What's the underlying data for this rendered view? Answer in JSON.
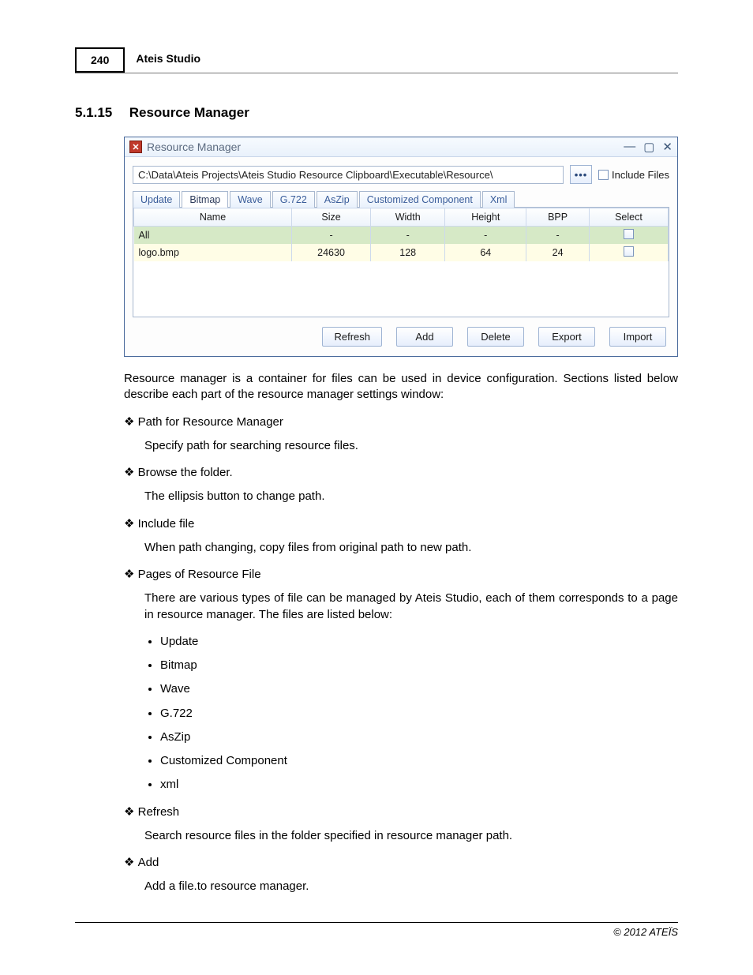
{
  "header": {
    "page_number": "240",
    "product": "Ateis Studio"
  },
  "section": {
    "number": "5.1.15",
    "title": "Resource Manager"
  },
  "window": {
    "title": "Resource Manager",
    "path": "C:\\Data\\Ateis Projects\\Ateis Studio Resource Clipboard\\Executable\\Resource\\",
    "browse_label": "•••",
    "include_files_label": "Include Files",
    "tabs": [
      "Update",
      "Bitmap",
      "Wave",
      "G.722",
      "AsZip",
      "Customized Component",
      "Xml"
    ],
    "active_tab_index": 1,
    "columns": [
      "Name",
      "Size",
      "Width",
      "Height",
      "BPP",
      "Select"
    ],
    "rows": [
      {
        "name": "All",
        "size": "-",
        "width": "-",
        "height": "-",
        "bpp": "-",
        "cls": "row-all"
      },
      {
        "name": "logo.bmp",
        "size": "24630",
        "width": "128",
        "height": "64",
        "bpp": "24",
        "cls": "row-data"
      }
    ],
    "actions": [
      "Refresh",
      "Add",
      "Delete",
      "Export",
      "Import"
    ],
    "colors": {
      "border": "#4a6a9c",
      "row_all_bg": "#d6e9c6",
      "row_data_bg": "#fffde6"
    }
  },
  "body": {
    "lead": "Resource manager is a container for files can be used in device configuration. Sections listed below describe each part of the resource manager settings window:",
    "items": [
      {
        "title": "Path for Resource Manager",
        "body": "Specify path for searching resource files."
      },
      {
        "title": "Browse the folder.",
        "body": "The ellipsis button to change path."
      },
      {
        "title": "Include file",
        "body": "When path changing, copy files from original path to new path."
      },
      {
        "title": "Pages of Resource File",
        "body": "There are various types of file can be managed by Ateis Studio, each of them corresponds to a page in resource manager. The files are listed below:",
        "list": [
          "Update",
          "Bitmap",
          "Wave",
          "G.722",
          "AsZip",
          "Customized Component",
          "xml"
        ]
      },
      {
        "title": "Refresh",
        "body": "Search resource files in the folder specified in resource manager path."
      },
      {
        "title": "Add",
        "body": "Add a file.to resource manager."
      }
    ]
  },
  "footer": "© 2012 ATEÏS"
}
